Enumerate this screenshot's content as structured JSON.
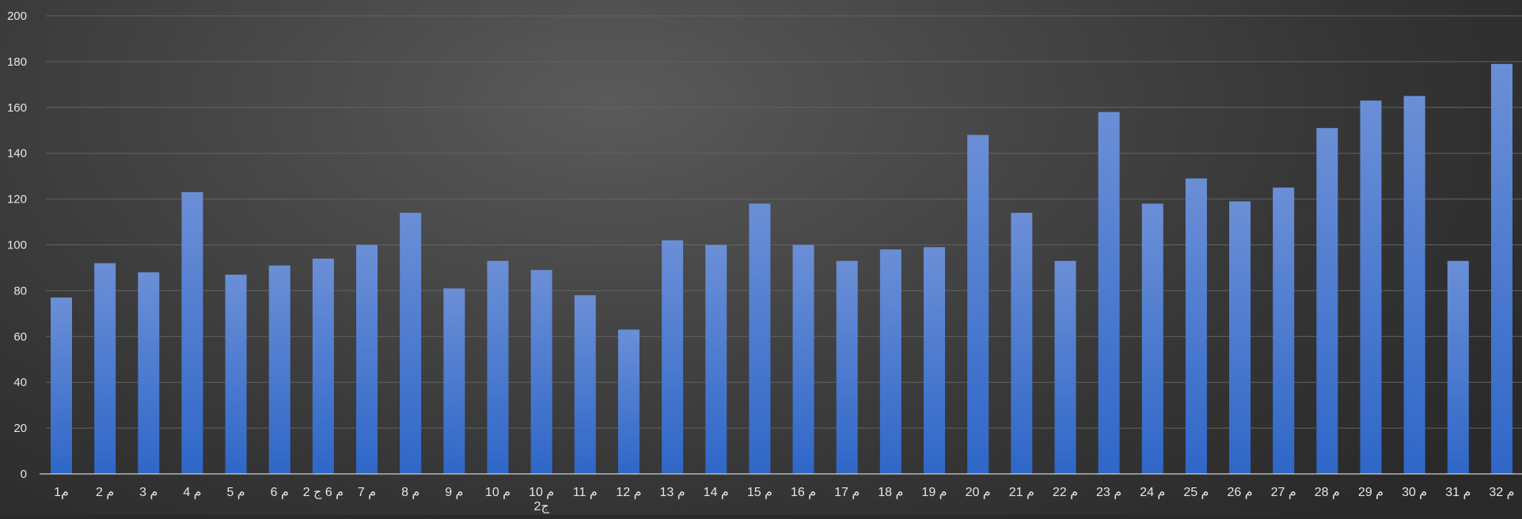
{
  "chart_data": {
    "type": "bar",
    "title": "",
    "xlabel": "",
    "ylabel": "",
    "ylim": [
      0,
      200
    ],
    "yticks": [
      0,
      20,
      40,
      60,
      80,
      100,
      120,
      140,
      160,
      180,
      200
    ],
    "grid": true,
    "legend": "none",
    "colors": {
      "bar_top": "#6b8fd6",
      "bar_bottom": "#2f67c8",
      "gridline": "#626262",
      "axis": "#d0d0d0",
      "label": "#e6e6e6"
    },
    "categories": [
      "م1",
      "م 2",
      "م 3",
      "م 4",
      "م 5",
      "م 6",
      "م 6 ج 2",
      "م 7",
      "م 8",
      "م 9",
      "م 10",
      "م 10 ج2",
      "م 11",
      "م 12",
      "م 13",
      "م 14",
      "م 15",
      "م 16",
      "م 17",
      "م 18",
      "م 19",
      "م 20",
      "م 21",
      "م 22",
      "م 23",
      "م 24",
      "م 25",
      "م 26",
      "م 27",
      "م 28",
      "م 29",
      "م 30",
      "م 31",
      "م 32"
    ],
    "values": [
      77,
      92,
      88,
      123,
      87,
      91,
      94,
      100,
      114,
      81,
      93,
      89,
      78,
      63,
      102,
      100,
      118,
      100,
      93,
      98,
      99,
      148,
      114,
      93,
      158,
      118,
      129,
      119,
      125,
      151,
      163,
      165,
      93,
      179
    ]
  }
}
